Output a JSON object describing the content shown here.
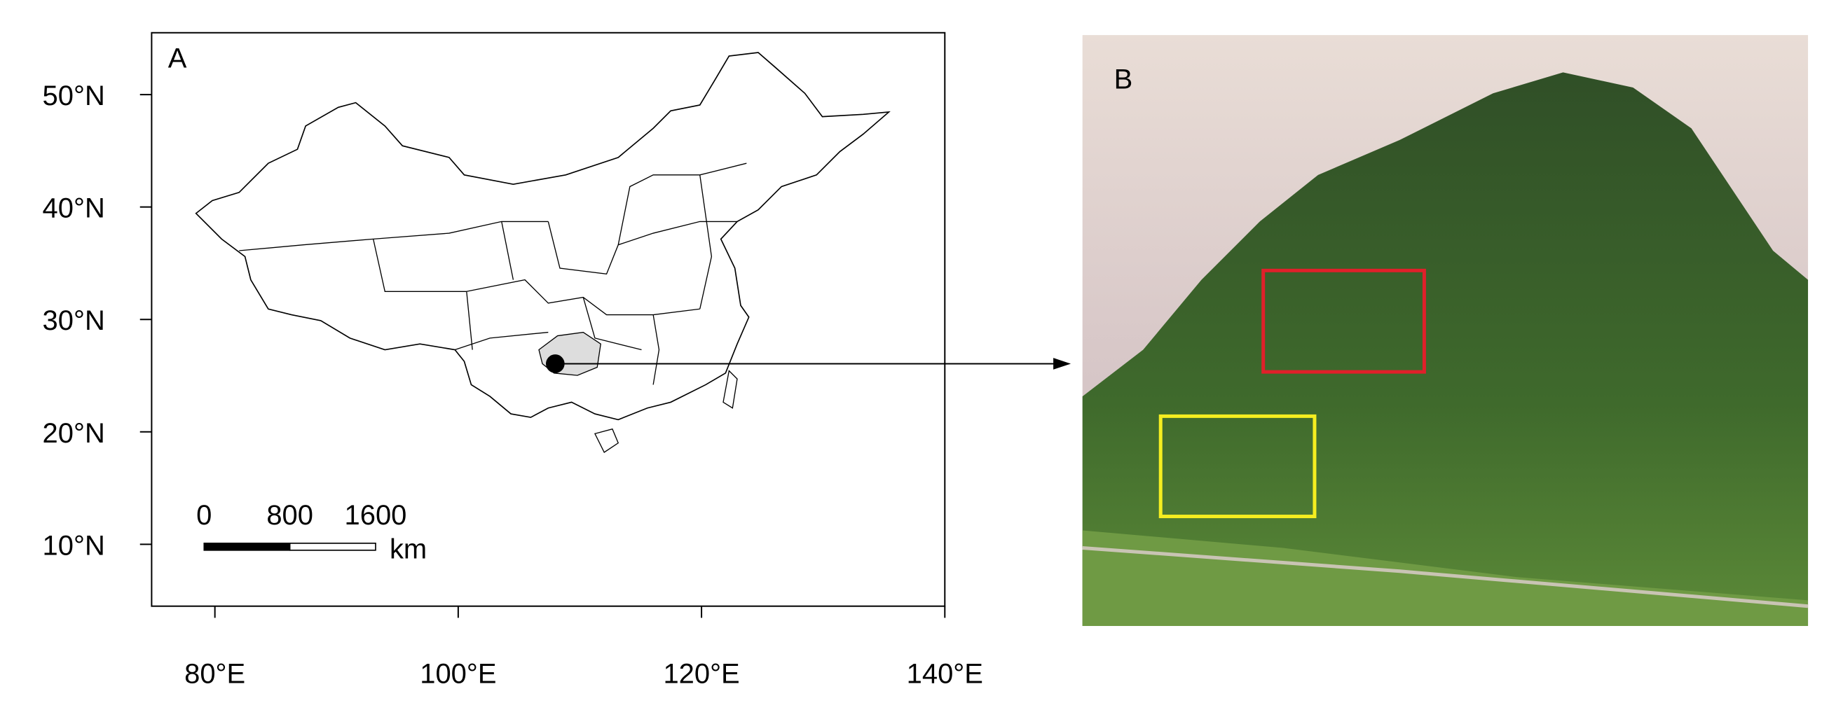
{
  "map": {
    "panel_label": "A",
    "xlim": [
      74.8,
      140
    ],
    "ylim": [
      4.5,
      55.5
    ],
    "xticks": [
      {
        "value": 80,
        "label": "80°E"
      },
      {
        "value": 100,
        "label": "100°E"
      },
      {
        "value": 120,
        "label": "120°E"
      },
      {
        "value": 140,
        "label": "140°E"
      }
    ],
    "yticks": [
      {
        "value": 10,
        "label": "10°N"
      },
      {
        "value": 20,
        "label": "20°N"
      },
      {
        "value": 30,
        "label": "30°N"
      },
      {
        "value": 40,
        "label": "40°N"
      },
      {
        "value": 50,
        "label": "50°N"
      }
    ],
    "scale_bar": {
      "ticks": [
        0,
        800,
        1600
      ],
      "unit": "km"
    }
  },
  "photo": {
    "panel_label": "B"
  }
}
